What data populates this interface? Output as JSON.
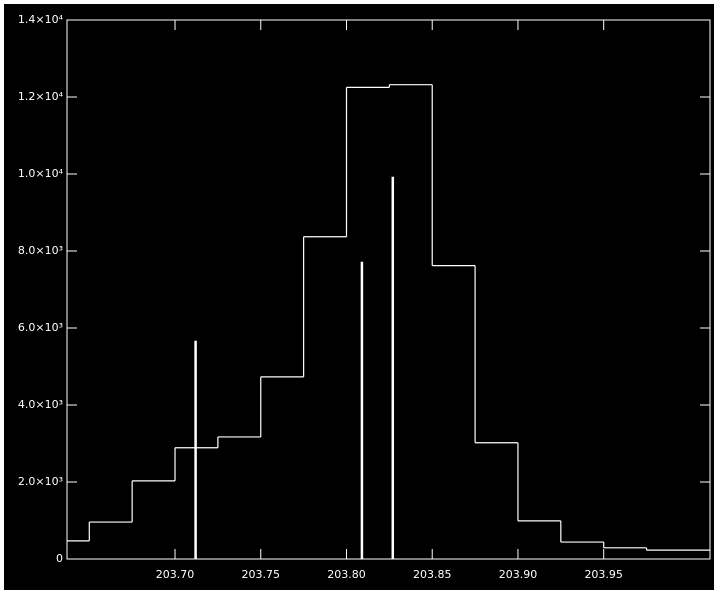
{
  "chart_data": {
    "type": "histogram",
    "bins": [
      203.637,
      203.65,
      203.675,
      203.7,
      203.725,
      203.75,
      203.775,
      203.8,
      203.825,
      203.85,
      203.875,
      203.9,
      203.925,
      203.95,
      203.975,
      204.012
    ],
    "values": [
      470,
      960,
      2030,
      2890,
      3170,
      4730,
      8370,
      12250,
      12320,
      7620,
      3020,
      990,
      440,
      290,
      230
    ],
    "color": "#ffffff",
    "vlines": {
      "x": [
        203.712,
        203.809,
        203.827
      ],
      "values": [
        5670,
        7720,
        9930
      ]
    },
    "xlim": [
      203.637,
      204.012
    ],
    "xticks": [
      {
        "value": 203.7,
        "label": "203.70"
      },
      {
        "value": 203.75,
        "label": "203.75"
      },
      {
        "value": 203.8,
        "label": "203.80"
      },
      {
        "value": 203.85,
        "label": "203.85"
      },
      {
        "value": 203.9,
        "label": "203.90"
      },
      {
        "value": 203.95,
        "label": "203.95"
      }
    ],
    "ylim": [
      0,
      14000
    ],
    "yticks": [
      0,
      {
        "value": 2000,
        "label": "2.0×10³"
      },
      {
        "value": 4000,
        "label": "4.0×10³"
      },
      {
        "value": 6000,
        "label": "6.0×10³"
      },
      {
        "value": 8000,
        "label": "8.0×10³"
      },
      {
        "value": 10000,
        "label": "1.0×10⁴"
      },
      {
        "value": 12000,
        "label": "1.2×10⁴"
      },
      {
        "value": 14000,
        "label": "1.4×10⁴"
      }
    ],
    "grid": false
  }
}
